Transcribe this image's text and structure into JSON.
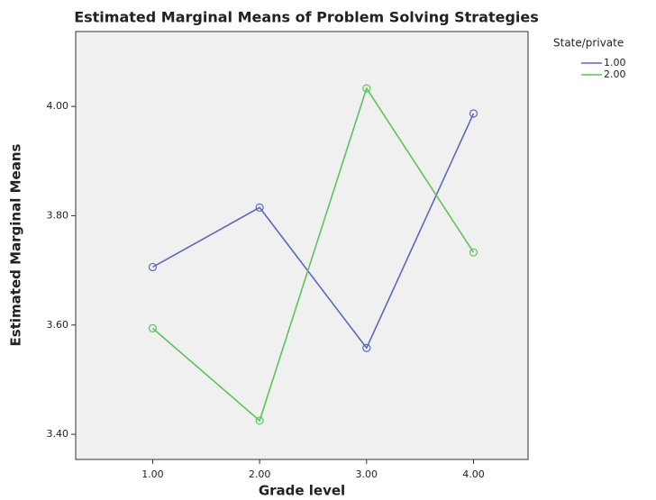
{
  "chart_data": {
    "type": "line",
    "title": "Estimated Marginal Means of Problem Solving Strategies",
    "x_label": "Grade level",
    "y_label": "Estimated Marginal Means",
    "legend_title": "State/private",
    "x": [
      1,
      2,
      3,
      4
    ],
    "series": [
      {
        "name": "1.00",
        "color": "#5a69bd",
        "values": [
          3.706,
          3.815,
          3.558,
          3.987
        ]
      },
      {
        "name": "2.00",
        "color": "#5cc45a",
        "values": [
          3.594,
          3.425,
          4.033,
          3.733
        ]
      }
    ],
    "xlim": [
      0.28,
      4.51
    ],
    "xticks": [
      {
        "value": 1,
        "label": "1.00"
      },
      {
        "value": 2,
        "label": "2.00"
      },
      {
        "value": 3,
        "label": "3.00"
      },
      {
        "value": 4,
        "label": "4.00"
      }
    ],
    "ylim": [
      3.354,
      4.137
    ],
    "yticks": [
      {
        "value": 3.4,
        "label": "3.40"
      },
      {
        "value": 3.6,
        "label": "3.60"
      },
      {
        "value": 3.8,
        "label": "3.80"
      },
      {
        "value": 4.0,
        "label": "4.00"
      }
    ],
    "grid": false,
    "legend": "right"
  }
}
